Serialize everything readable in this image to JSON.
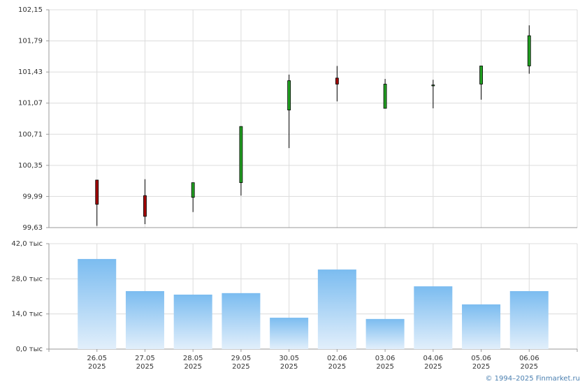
{
  "chart_data": [
    {
      "type": "candlestick",
      "open": [
        100.18,
        100.0,
        99.98,
        100.15,
        100.99,
        101.36,
        101.01,
        101.27,
        101.29,
        101.5
      ],
      "high": [
        100.18,
        100.19,
        100.15,
        100.8,
        101.4,
        101.5,
        101.35,
        101.34,
        101.5,
        101.97
      ],
      "low": [
        99.65,
        99.67,
        99.81,
        100.0,
        100.55,
        101.09,
        101.01,
        101.01,
        101.11,
        101.41
      ],
      "close": [
        99.9,
        99.76,
        100.15,
        100.8,
        101.33,
        101.29,
        101.29,
        101.28,
        101.5,
        101.85
      ],
      "up_color": "#22a022",
      "down_color": "#a00000",
      "ylim": [
        99.63,
        102.15
      ],
      "yticks": [
        {
          "value": 99.63,
          "label": "99,63"
        },
        {
          "value": 99.99,
          "label": "99,99"
        },
        {
          "value": 100.35,
          "label": "100,35"
        },
        {
          "value": 100.71,
          "label": "100,71"
        },
        {
          "value": 101.07,
          "label": "101,07"
        },
        {
          "value": 101.43,
          "label": "101,43"
        },
        {
          "value": 101.79,
          "label": "101,79"
        },
        {
          "value": 102.15,
          "label": "102,15"
        }
      ],
      "grid": true
    },
    {
      "type": "bar",
      "categories": [
        [
          "26.05",
          "2025"
        ],
        [
          "27.05",
          "2025"
        ],
        [
          "28.05",
          "2025"
        ],
        [
          "29.05",
          "2025"
        ],
        [
          "30.05",
          "2025"
        ],
        [
          "02.06",
          "2025"
        ],
        [
          "03.06",
          "2025"
        ],
        [
          "04.06",
          "2025"
        ],
        [
          "05.06",
          "2025"
        ],
        [
          "06.06",
          "2025"
        ]
      ],
      "values": [
        35.9,
        23.1,
        21.7,
        22.3,
        12.5,
        31.7,
        12.0,
        25.0,
        17.8,
        23.1
      ],
      "color": "#7bbcf0",
      "ylim": [
        0,
        42
      ],
      "yticks": [
        {
          "value": 0,
          "label": "0,0 тыс"
        },
        {
          "value": 14,
          "label": "14,0 тыс"
        },
        {
          "value": 28,
          "label": "28,0 тыс"
        },
        {
          "value": 42,
          "label": "42,0 тыс"
        }
      ],
      "grid": true
    }
  ],
  "footer": "© 1994–2025 Finmarket.ru"
}
